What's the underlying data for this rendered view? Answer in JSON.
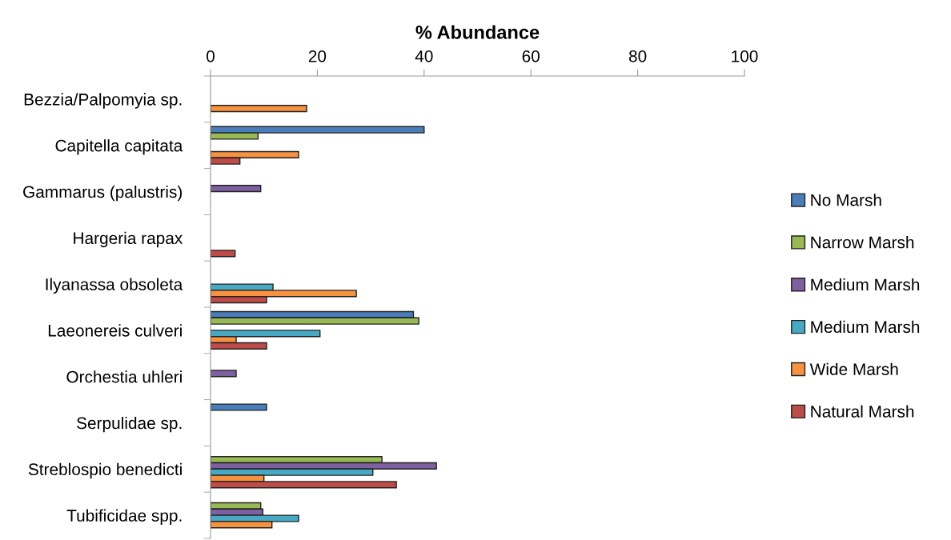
{
  "chart_data": {
    "type": "bar",
    "orientation": "horizontal",
    "xlabel": "% Abundance",
    "categories": [
      "Bezzia/Palpomyia sp.",
      "Capitella capitata",
      "Gammarus (palustris)",
      "Hargeria rapax",
      "Ilyanassa obsoleta",
      "Laeonereis culveri",
      "Orchestia uhleri",
      "Serpulidae sp.",
      "Streblospio benedicti",
      "Tubificidae spp."
    ],
    "series": [
      {
        "name": "No Marsh",
        "color": "#4a7ebb",
        "values": [
          null,
          40,
          null,
          null,
          null,
          38,
          null,
          10.5,
          null,
          null
        ]
      },
      {
        "name": "Narrow Marsh",
        "color": "#98b954",
        "values": [
          null,
          8.9,
          null,
          null,
          null,
          39,
          null,
          null,
          32.1,
          9.4
        ]
      },
      {
        "name": "Medium Marsh",
        "color": "#7d60a0",
        "values": [
          null,
          null,
          9.4,
          null,
          null,
          null,
          4.8,
          null,
          42.3,
          9.8
        ]
      },
      {
        "name": "Medium Marsh",
        "color": "#46aac5",
        "values": [
          null,
          null,
          null,
          null,
          11.7,
          20.5,
          null,
          null,
          30.4,
          16.5
        ]
      },
      {
        "name": "Wide Marsh",
        "color": "#f69240",
        "values": [
          18,
          16.5,
          null,
          null,
          27.3,
          4.8,
          null,
          null,
          10,
          11.5
        ]
      },
      {
        "name": "Natural Marsh",
        "color": "#be4b48",
        "values": [
          null,
          5.5,
          null,
          4.6,
          10.5,
          10.5,
          null,
          null,
          34.8,
          null
        ]
      }
    ],
    "xlim": [
      0,
      100
    ],
    "xticks": [
      0,
      20,
      40,
      60,
      80,
      100
    ],
    "grid": false,
    "legend": "right"
  }
}
